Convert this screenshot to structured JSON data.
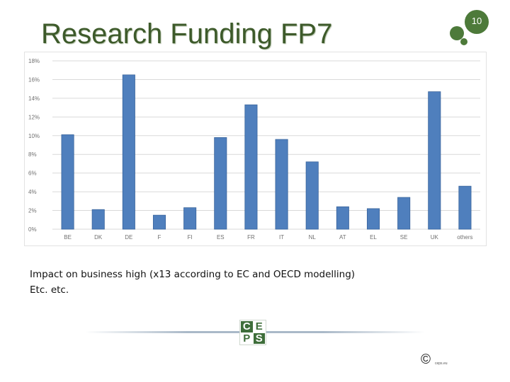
{
  "slide": {
    "title": "Research Funding FP7",
    "page_number": "10",
    "body_lines": [
      "Impact on business high (x13 according to EC and OECD modelling)",
      "Etc. etc."
    ],
    "logo_letters": [
      "C",
      "E",
      "P",
      "S"
    ],
    "copyright_symbol": "©",
    "copyright_note": "ceps.eu"
  },
  "colors": {
    "title": "#3d5a2a",
    "badge": "#4d7a3a",
    "bar_fill": "#4f7fbd",
    "bar_edge": "#3a659c",
    "grid": "#d9d9d9",
    "tick_text": "#707070"
  },
  "chart_data": {
    "type": "bar",
    "title": "",
    "xlabel": "",
    "ylabel": "",
    "categories": [
      "BE",
      "DK",
      "DE",
      "F",
      "FI",
      "ES",
      "FR",
      "IT",
      "NL",
      "AT",
      "EL",
      "SE",
      "UK",
      "others"
    ],
    "values": [
      10.1,
      2.1,
      16.5,
      1.5,
      2.3,
      9.8,
      13.3,
      9.6,
      7.2,
      2.4,
      2.2,
      3.4,
      14.7,
      4.6
    ],
    "y_ticks": [
      "0%",
      "2%",
      "4%",
      "6%",
      "8%",
      "10%",
      "12%",
      "14%",
      "16%",
      "18%"
    ],
    "ylim": [
      0,
      18
    ],
    "grid": true,
    "legend": "none"
  }
}
